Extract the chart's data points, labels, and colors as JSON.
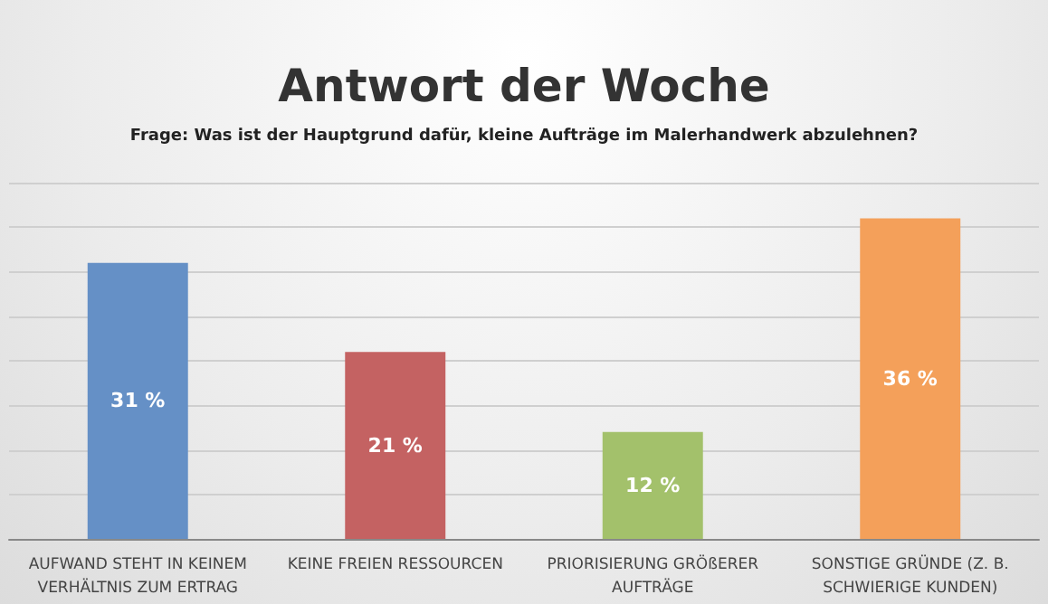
{
  "chart_data": {
    "type": "bar",
    "title": "Antwort der Woche",
    "subtitle": "Frage: Was ist der Hauptgrund dafür, kleine Aufträge im Malerhandwerk abzulehnen?",
    "categories": [
      "AUFWAND STEHT IN KEINEM\nVERHÄLTNIS ZUM ERTRAG",
      "KEINE FREIEN RESSOURCEN",
      "PRIORISIERUNG GRÖßERER\nAUFTRÄGE",
      "SONSTIGE GRÜNDE (Z. B.\nSCHWIERIGE KUNDEN)"
    ],
    "values": [
      31,
      21,
      12,
      36
    ],
    "value_labels": [
      "31 %",
      "21 %",
      "12 %",
      "36 %"
    ],
    "colors": [
      "#6590c6",
      "#c46262",
      "#a3c16b",
      "#f4a05a"
    ],
    "ylim": [
      0,
      40
    ],
    "yticks": [
      {
        "value": 0,
        "label": null
      },
      {
        "value": 5,
        "label": null
      },
      {
        "value": 10,
        "label": null
      },
      {
        "value": 15,
        "label": null
      },
      {
        "value": 20,
        "label": null
      },
      {
        "value": 25,
        "label": null
      },
      {
        "value": 30,
        "label": null
      },
      {
        "value": 35,
        "label": null
      },
      {
        "value": 40,
        "label": null
      }
    ],
    "grid": "y",
    "tick_labels": "x"
  }
}
